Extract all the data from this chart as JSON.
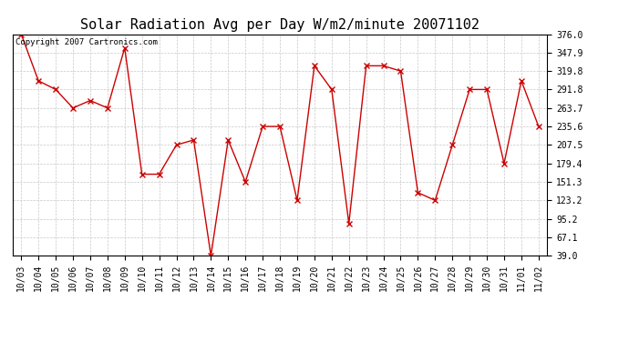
{
  "title": "Solar Radiation Avg per Day W/m2/minute 20071102",
  "copyright": "Copyright 2007 Cartronics.com",
  "labels": [
    "10/03",
    "10/04",
    "10/05",
    "10/06",
    "10/07",
    "10/08",
    "10/09",
    "10/10",
    "10/11",
    "10/12",
    "10/13",
    "10/14",
    "10/15",
    "10/16",
    "10/17",
    "10/18",
    "10/19",
    "10/20",
    "10/21",
    "10/22",
    "10/23",
    "10/24",
    "10/25",
    "10/26",
    "10/27",
    "10/28",
    "10/29",
    "10/30",
    "10/31",
    "11/01",
    "11/02"
  ],
  "values": [
    376.0,
    305.0,
    291.8,
    263.7,
    275.0,
    263.7,
    355.0,
    163.0,
    163.0,
    207.5,
    215.0,
    39.0,
    215.0,
    151.3,
    235.6,
    235.6,
    123.2,
    327.8,
    291.8,
    88.0,
    327.8,
    327.8,
    319.8,
    135.0,
    123.2,
    207.5,
    291.8,
    291.8,
    179.4,
    305.0,
    235.6
  ],
  "line_color": "#cc0000",
  "marker": "x",
  "marker_color": "#cc0000",
  "bg_color": "#ffffff",
  "grid_color": "#c8c8c8",
  "ylim": [
    39.0,
    376.0
  ],
  "yticks": [
    39.0,
    67.1,
    95.2,
    123.2,
    151.3,
    179.4,
    207.5,
    235.6,
    263.7,
    291.8,
    319.8,
    347.9,
    376.0
  ],
  "title_fontsize": 11,
  "copyright_fontsize": 6.5,
  "tick_fontsize": 7,
  "figwidth": 6.9,
  "figheight": 3.75,
  "dpi": 100
}
